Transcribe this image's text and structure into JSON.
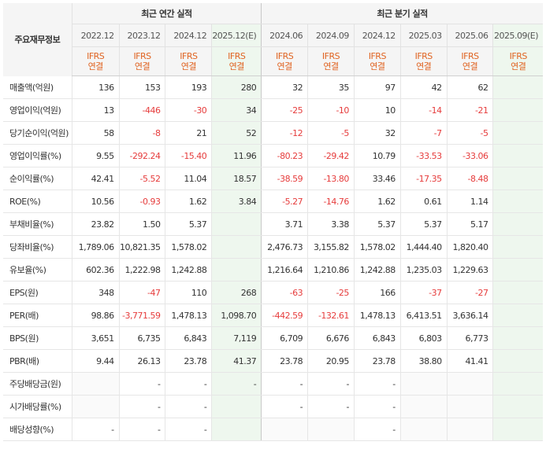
{
  "header": {
    "corner_label": "주요재무정보",
    "annual_title": "최근 연간 실적",
    "quarter_title": "최근 분기 실적",
    "periods": [
      "2022.12",
      "2023.12",
      "2024.12",
      "2025.12(E)",
      "2024.06",
      "2024.09",
      "2024.12",
      "2025.03",
      "2025.06",
      "2025.09(E)"
    ],
    "ifrs_line1": "IFRS",
    "ifrs_line2": "연결"
  },
  "rows": [
    {
      "label": "매출액(억원)",
      "values": [
        "136",
        "153",
        "193",
        "280",
        "32",
        "35",
        "97",
        "42",
        "62",
        ""
      ]
    },
    {
      "label": "영업이익(억원)",
      "values": [
        "13",
        "-446",
        "-30",
        "34",
        "-25",
        "-10",
        "10",
        "-14",
        "-21",
        ""
      ]
    },
    {
      "label": "당기순이익(억원)",
      "values": [
        "58",
        "-8",
        "21",
        "52",
        "-12",
        "-5",
        "32",
        "-7",
        "-5",
        ""
      ]
    },
    {
      "label": "영업이익률(%)",
      "values": [
        "9.55",
        "-292.24",
        "-15.40",
        "11.96",
        "-80.23",
        "-29.42",
        "10.79",
        "-33.53",
        "-33.06",
        ""
      ]
    },
    {
      "label": "순이익률(%)",
      "values": [
        "42.41",
        "-5.52",
        "11.04",
        "18.57",
        "-38.59",
        "-13.80",
        "33.46",
        "-17.35",
        "-8.48",
        ""
      ]
    },
    {
      "label": "ROE(%)",
      "values": [
        "10.56",
        "-0.93",
        "1.62",
        "3.84",
        "-5.27",
        "-14.76",
        "1.62",
        "0.61",
        "1.14",
        ""
      ]
    },
    {
      "label": "부채비율(%)",
      "values": [
        "23.82",
        "1.50",
        "5.37",
        "",
        "3.71",
        "3.38",
        "5.37",
        "5.37",
        "5.17",
        ""
      ]
    },
    {
      "label": "당좌비율(%)",
      "values": [
        "1,789.06",
        "10,821.35",
        "1,578.02",
        "",
        "2,476.73",
        "3,155.82",
        "1,578.02",
        "1,444.40",
        "1,820.40",
        ""
      ]
    },
    {
      "label": "유보율(%)",
      "values": [
        "602.36",
        "1,222.98",
        "1,242.88",
        "",
        "1,216.64",
        "1,210.86",
        "1,242.88",
        "1,235.03",
        "1,229.63",
        ""
      ]
    },
    {
      "label": "EPS(원)",
      "values": [
        "348",
        "-47",
        "110",
        "268",
        "-63",
        "-25",
        "166",
        "-37",
        "-27",
        ""
      ]
    },
    {
      "label": "PER(배)",
      "values": [
        "98.86",
        "-3,771.59",
        "1,478.13",
        "1,098.70",
        "-442.59",
        "-132.61",
        "1,478.13",
        "6,413.51",
        "3,636.14",
        ""
      ]
    },
    {
      "label": "BPS(원)",
      "values": [
        "3,651",
        "6,735",
        "6,843",
        "7,119",
        "6,709",
        "6,676",
        "6,843",
        "6,803",
        "6,773",
        ""
      ]
    },
    {
      "label": "PBR(배)",
      "values": [
        "9.44",
        "26.13",
        "23.78",
        "41.37",
        "23.78",
        "20.95",
        "23.78",
        "38.80",
        "41.41",
        ""
      ]
    },
    {
      "label": "주당배당금(원)",
      "values": [
        "",
        "-",
        "-",
        "-",
        "-",
        "-",
        "-",
        "",
        "",
        ""
      ]
    },
    {
      "label": "시가배당률(%)",
      "values": [
        "",
        "-",
        "-",
        "",
        "-",
        "-",
        "-",
        "",
        "",
        ""
      ]
    },
    {
      "label": "배당성향(%)",
      "values": [
        "-",
        "-",
        "-",
        "",
        "",
        "",
        "-",
        "",
        "",
        ""
      ]
    }
  ]
}
